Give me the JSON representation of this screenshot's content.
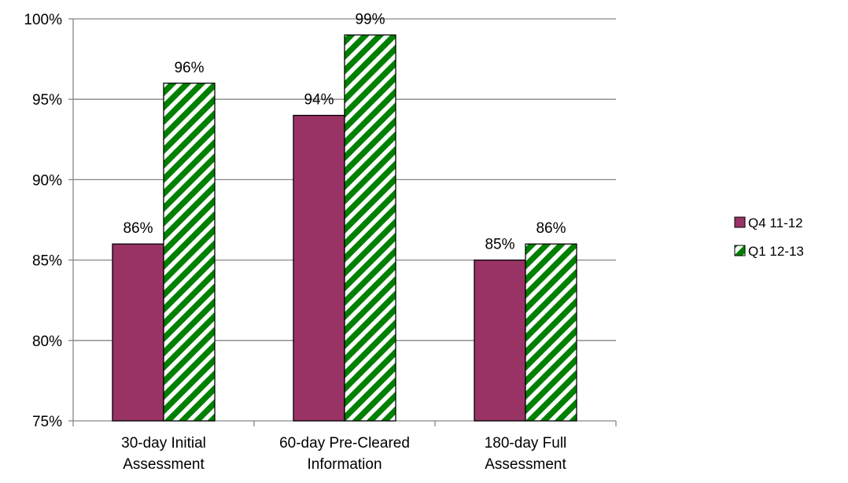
{
  "chart_data": {
    "type": "bar",
    "categories": [
      [
        "30-day Initial",
        "Assessment"
      ],
      [
        "60-day Pre-Cleared",
        "Information"
      ],
      [
        "180-day Full",
        "Assessment"
      ]
    ],
    "series": [
      {
        "name": "Q4 11-12",
        "values": [
          86,
          94,
          85
        ],
        "labels": [
          "86%",
          "94%",
          "85%"
        ],
        "color": "#993366",
        "pattern": "solid"
      },
      {
        "name": "Q1 12-13",
        "values": [
          96,
          99,
          86
        ],
        "labels": [
          "96%",
          "99%",
          "86%"
        ],
        "color": "#008000",
        "pattern": "diagonal-stripes"
      }
    ],
    "ylim": [
      75,
      100
    ],
    "y_ticks": [
      75,
      80,
      85,
      90,
      95,
      100
    ],
    "y_tick_labels": [
      "75%",
      "80%",
      "85%",
      "90%",
      "95%",
      "100%"
    ],
    "grid": true,
    "legend_position": "right",
    "colors": {
      "grid": "#868686",
      "axis": "#868686",
      "bar_outline": "#000000"
    }
  }
}
